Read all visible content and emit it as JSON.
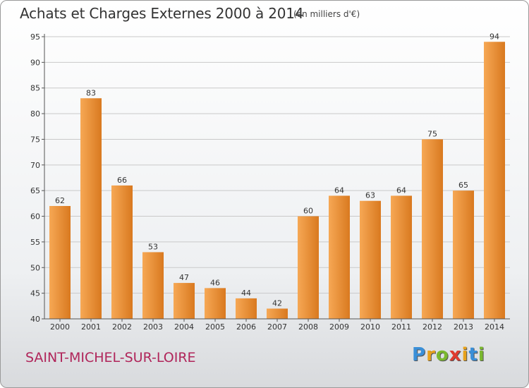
{
  "header": {
    "title": "Achats et Charges Externes 2000 à 2014",
    "subtitle": "(en milliers d'€)"
  },
  "footer": {
    "town": "SAINT-MICHEL-SUR-LOIRE",
    "logo": "Proxiti",
    "logo_letters": [
      {
        "ch": "P",
        "color": "#3a8fd8"
      },
      {
        "ch": "r",
        "color": "#e8a21c"
      },
      {
        "ch": "o",
        "color": "#7ab82e"
      },
      {
        "ch": "x",
        "color": "#e03b2f"
      },
      {
        "ch": "i",
        "color": "#e8a21c"
      },
      {
        "ch": "t",
        "color": "#3a8fd8"
      },
      {
        "ch": "i",
        "color": "#7ab82e"
      }
    ]
  },
  "colors": {
    "bar_light": "#f6a855",
    "bar_dark": "#d9791f",
    "grid": "#c9c9c9"
  },
  "chart_data": {
    "type": "bar",
    "title": "Achats et Charges Externes 2000 à 2014",
    "subtitle": "(en milliers d'€)",
    "categories": [
      "2000",
      "2001",
      "2002",
      "2003",
      "2004",
      "2005",
      "2006",
      "2007",
      "2008",
      "2009",
      "2010",
      "2011",
      "2012",
      "2013",
      "2014"
    ],
    "values": [
      62,
      83,
      66,
      53,
      47,
      46,
      44,
      42,
      60,
      64,
      63,
      64,
      75,
      65,
      94
    ],
    "ylim": [
      40,
      95
    ],
    "yticks": [
      40,
      45,
      50,
      55,
      60,
      65,
      70,
      75,
      80,
      85,
      90,
      95
    ],
    "xlabel": "",
    "ylabel": "",
    "grid": true,
    "data_labels": true
  }
}
